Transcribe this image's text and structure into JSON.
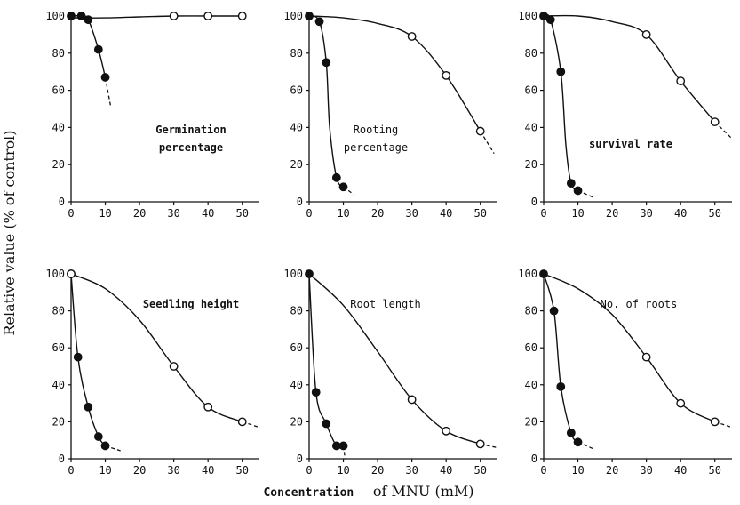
{
  "figure": {
    "ylabel": "Relative value (% of control)",
    "xlabel_part1": "Concentration",
    "xlabel_part2": "of MNU (mM)",
    "colors": {
      "ink": "#111111",
      "open_fill": "#ffffff",
      "filled": "#111111"
    }
  },
  "chart_data": [
    {
      "type": "line",
      "title_lines": [
        "Germination",
        "percentage"
      ],
      "title_bold": true,
      "xlim": [
        0,
        55
      ],
      "ylim": [
        0,
        100
      ],
      "xticks": [
        0,
        10,
        20,
        30,
        40,
        50
      ],
      "yticks": [
        0,
        20,
        40,
        60,
        80,
        100
      ],
      "series": [
        {
          "marker": "filled",
          "x": [
            0,
            3,
            5,
            8,
            10
          ],
          "y": [
            100,
            100,
            98,
            82,
            67
          ],
          "curve": [
            [
              0,
              100
            ],
            [
              3,
              100
            ],
            [
              5,
              98
            ],
            [
              8,
              82
            ],
            [
              10,
              67
            ]
          ],
          "dashed": [
            [
              10,
              67
            ],
            [
              11.5,
              52
            ]
          ]
        },
        {
          "marker": "open",
          "x": [
            30,
            40,
            50
          ],
          "y": [
            100,
            100,
            100
          ],
          "curve": [
            [
              0,
              99
            ],
            [
              10,
              99
            ],
            [
              20,
              99.5
            ],
            [
              30,
              100
            ],
            [
              40,
              100
            ],
            [
              50,
              100
            ]
          ],
          "dashed": null
        }
      ]
    },
    {
      "type": "line",
      "title_lines": [
        "Rooting",
        "percentage"
      ],
      "title_bold": false,
      "xlim": [
        0,
        55
      ],
      "ylim": [
        0,
        100
      ],
      "xticks": [
        0,
        10,
        20,
        30,
        40,
        50
      ],
      "yticks": [
        0,
        20,
        40,
        60,
        80,
        100
      ],
      "series": [
        {
          "marker": "filled",
          "x": [
            0,
            3,
            5,
            8,
            10
          ],
          "y": [
            100,
            97,
            75,
            13,
            8
          ],
          "curve": [
            [
              0,
              100
            ],
            [
              3,
              97
            ],
            [
              5,
              75
            ],
            [
              6,
              40
            ],
            [
              8,
              13
            ],
            [
              10,
              8
            ]
          ],
          "dashed": [
            [
              10,
              8
            ],
            [
              13,
              4
            ]
          ]
        },
        {
          "marker": "open",
          "x": [
            30,
            40,
            50
          ],
          "y": [
            89,
            68,
            38
          ],
          "curve": [
            [
              0,
              100
            ],
            [
              10,
              99
            ],
            [
              20,
              96
            ],
            [
              30,
              89
            ],
            [
              40,
              68
            ],
            [
              50,
              38
            ]
          ],
          "dashed": [
            [
              50,
              38
            ],
            [
              54,
              26
            ]
          ]
        }
      ]
    },
    {
      "type": "line",
      "title_lines": [
        "survival rate"
      ],
      "title_bold": true,
      "xlim": [
        0,
        55
      ],
      "ylim": [
        0,
        100
      ],
      "xticks": [
        0,
        10,
        20,
        30,
        40,
        50
      ],
      "yticks": [
        0,
        20,
        40,
        60,
        80,
        100
      ],
      "series": [
        {
          "marker": "filled",
          "x": [
            0,
            2,
            5,
            8,
            10
          ],
          "y": [
            100,
            98,
            70,
            10,
            6
          ],
          "curve": [
            [
              0,
              100
            ],
            [
              2,
              98
            ],
            [
              5,
              70
            ],
            [
              6.5,
              30
            ],
            [
              8,
              10
            ],
            [
              10,
              6
            ]
          ],
          "dashed": [
            [
              10,
              6
            ],
            [
              15,
              2
            ]
          ]
        },
        {
          "marker": "open",
          "x": [
            30,
            40,
            50
          ],
          "y": [
            90,
            65,
            43
          ],
          "curve": [
            [
              0,
              100
            ],
            [
              10,
              100
            ],
            [
              20,
              97
            ],
            [
              30,
              90
            ],
            [
              40,
              65
            ],
            [
              50,
              43
            ]
          ],
          "dashed": [
            [
              50,
              43
            ],
            [
              55,
              34
            ]
          ]
        }
      ]
    },
    {
      "type": "line",
      "title_lines": [
        "Seedling height"
      ],
      "title_bold": true,
      "xlim": [
        0,
        55
      ],
      "ylim": [
        0,
        100
      ],
      "xticks": [
        0,
        10,
        20,
        30,
        40,
        50
      ],
      "yticks": [
        0,
        20,
        40,
        60,
        80,
        100
      ],
      "series": [
        {
          "marker": "filled",
          "x": [
            0,
            2,
            5,
            8,
            10
          ],
          "y": [
            100,
            55,
            28,
            12,
            7
          ],
          "curve": [
            [
              0,
              100
            ],
            [
              2,
              55
            ],
            [
              5,
              28
            ],
            [
              8,
              12
            ],
            [
              10,
              7
            ]
          ],
          "dashed": [
            [
              10,
              7
            ],
            [
              15,
              4
            ]
          ]
        },
        {
          "marker": "open",
          "x": [
            0,
            30,
            40,
            50
          ],
          "y": [
            100,
            50,
            28,
            20
          ],
          "curve": [
            [
              0,
              100
            ],
            [
              10,
              92
            ],
            [
              20,
              75
            ],
            [
              30,
              50
            ],
            [
              40,
              28
            ],
            [
              50,
              20
            ]
          ],
          "dashed": [
            [
              50,
              20
            ],
            [
              55,
              17
            ]
          ]
        }
      ]
    },
    {
      "type": "line",
      "title_lines": [
        "Root length"
      ],
      "title_bold": false,
      "xlim": [
        0,
        55
      ],
      "ylim": [
        0,
        100
      ],
      "xticks": [
        0,
        10,
        20,
        30,
        40,
        50
      ],
      "yticks": [
        0,
        20,
        40,
        60,
        80,
        100
      ],
      "series": [
        {
          "marker": "filled",
          "x": [
            0,
            2,
            5,
            8,
            10
          ],
          "y": [
            100,
            36,
            19,
            7,
            7
          ],
          "curve": [
            [
              0,
              100
            ],
            [
              2,
              36
            ],
            [
              5,
              19
            ],
            [
              8,
              7
            ],
            [
              10,
              7
            ]
          ],
          "dashed": [
            [
              10,
              7
            ],
            [
              10.5,
              0
            ]
          ]
        },
        {
          "marker": "open",
          "x": [
            30,
            40,
            50
          ],
          "y": [
            32,
            15,
            8
          ],
          "curve": [
            [
              0,
              100
            ],
            [
              10,
              83
            ],
            [
              20,
              58
            ],
            [
              30,
              32
            ],
            [
              40,
              15
            ],
            [
              50,
              8
            ]
          ],
          "dashed": [
            [
              50,
              8
            ],
            [
              55,
              6
            ]
          ]
        }
      ]
    },
    {
      "type": "line",
      "title_lines": [
        "No. of roots"
      ],
      "title_bold": false,
      "xlim": [
        0,
        55
      ],
      "ylim": [
        0,
        100
      ],
      "xticks": [
        0,
        10,
        20,
        30,
        40,
        50
      ],
      "yticks": [
        0,
        20,
        40,
        60,
        80,
        100
      ],
      "series": [
        {
          "marker": "filled",
          "x": [
            0,
            3,
            5,
            8,
            10
          ],
          "y": [
            100,
            80,
            39,
            14,
            9
          ],
          "curve": [
            [
              0,
              100
            ],
            [
              3,
              80
            ],
            [
              5,
              39
            ],
            [
              8,
              14
            ],
            [
              10,
              9
            ]
          ],
          "dashed": [
            [
              10,
              9
            ],
            [
              15,
              5
            ]
          ]
        },
        {
          "marker": "open",
          "x": [
            30,
            40,
            50
          ],
          "y": [
            55,
            30,
            20
          ],
          "curve": [
            [
              0,
              100
            ],
            [
              10,
              92
            ],
            [
              20,
              78
            ],
            [
              30,
              55
            ],
            [
              40,
              30
            ],
            [
              50,
              20
            ]
          ],
          "dashed": [
            [
              50,
              20
            ],
            [
              55,
              17
            ]
          ]
        }
      ]
    }
  ]
}
